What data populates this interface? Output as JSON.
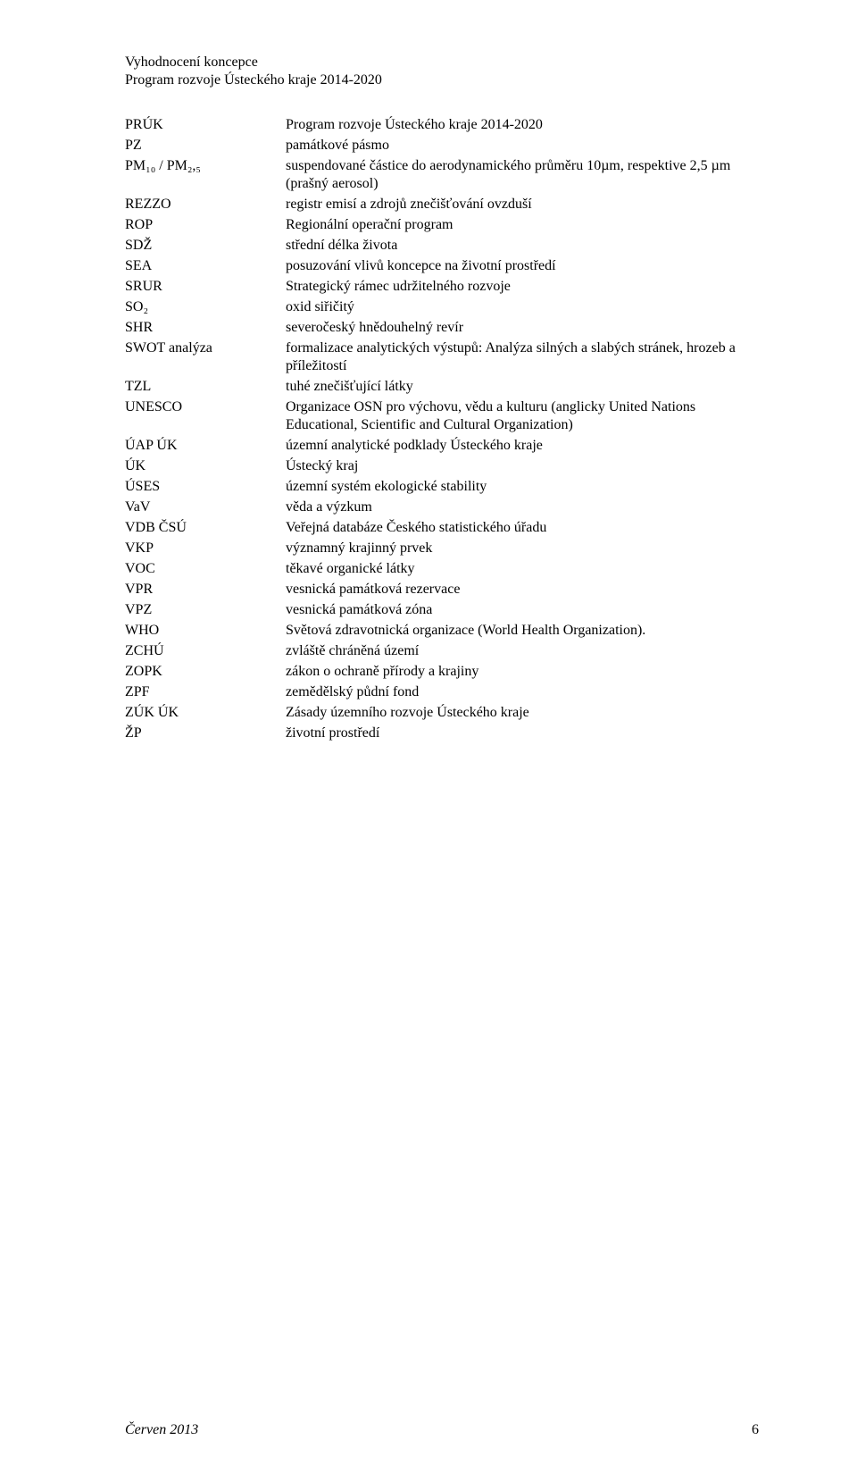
{
  "header": {
    "line1": "Vyhodnocení koncepce",
    "line2": "Program rozvoje Ústeckého kraje 2014-2020"
  },
  "entries": [
    {
      "abbr": "PRÚK",
      "def": "Program rozvoje Ústeckého kraje 2014-2020"
    },
    {
      "abbr": "PZ",
      "def": "památkové pásmo"
    },
    {
      "abbr": "PM₁₀ / PM₂,₅",
      "def": "suspendované částice do aerodynamického průměru 10µm, respektive 2,5 µm (prašný aerosol)"
    },
    {
      "abbr": "REZZO",
      "def": "registr emisí a zdrojů znečišťování ovzduší"
    },
    {
      "abbr": "ROP",
      "def": "Regionální operační program"
    },
    {
      "abbr": "SDŽ",
      "def": "střední délka života"
    },
    {
      "abbr": "SEA",
      "def": "posuzování vlivů koncepce na životní prostředí"
    },
    {
      "abbr": "SRUR",
      "def": "Strategický rámec udržitelného rozvoje"
    },
    {
      "abbr": "SO₂",
      "def": "oxid siřičitý"
    },
    {
      "abbr": "SHR",
      "def": "severočeský hnědouhelný revír"
    },
    {
      "abbr": "SWOT analýza",
      "def": "formalizace analytických výstupů: Analýza silných a slabých stránek, hrozeb a příležitostí"
    },
    {
      "abbr": "TZL",
      "def": "tuhé znečišťující látky"
    },
    {
      "abbr": "UNESCO",
      "def": "Organizace OSN pro výchovu, vědu a kulturu (anglicky United Nations Educational, Scientific and Cultural Organization)"
    },
    {
      "abbr": "ÚAP ÚK",
      "def": "územní analytické podklady Ústeckého kraje"
    },
    {
      "abbr": "ÚK",
      "def": "Ústecký kraj"
    },
    {
      "abbr": "ÚSES",
      "def": "územní systém ekologické stability"
    },
    {
      "abbr": "VaV",
      "def": "věda a výzkum"
    },
    {
      "abbr": "VDB ČSÚ",
      "def": "Veřejná databáze Českého statistického úřadu"
    },
    {
      "abbr": "VKP",
      "def": "významný krajinný prvek"
    },
    {
      "abbr": "VOC",
      "def": "těkavé organické látky"
    },
    {
      "abbr": "VPR",
      "def": "vesnická památková rezervace"
    },
    {
      "abbr": "VPZ",
      "def": "vesnická památková zóna"
    },
    {
      "abbr": "WHO",
      "def": "Světová zdravotnická organizace (World Health Organization)."
    },
    {
      "abbr": "ZCHÚ",
      "def": "zvláště chráněná území"
    },
    {
      "abbr": "ZOPK",
      "def": "zákon o ochraně přírody a krajiny"
    },
    {
      "abbr": "ZPF",
      "def": "zemědělský půdní fond"
    },
    {
      "abbr": "ZÚK ÚK",
      "def": "Zásady územního rozvoje Ústeckého kraje"
    },
    {
      "abbr": "ŽP",
      "def": "životní prostředí"
    }
  ],
  "footer": {
    "date": "Červen 2013",
    "page": "6"
  }
}
